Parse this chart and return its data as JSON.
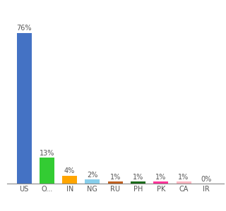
{
  "categories": [
    "US",
    "O...",
    "IN",
    "NG",
    "RU",
    "PH",
    "PK",
    "CA",
    "IR"
  ],
  "values": [
    76,
    13,
    4,
    2,
    1,
    1,
    1,
    1,
    0
  ],
  "labels": [
    "76%",
    "13%",
    "4%",
    "2%",
    "1%",
    "1%",
    "1%",
    "1%",
    "0%"
  ],
  "colors": [
    "#4472C4",
    "#33CC33",
    "#FFA500",
    "#87CEEB",
    "#C06020",
    "#1A6B1A",
    "#FF3399",
    "#FFB6C1",
    "#FF69B4"
  ],
  "ylim": [
    0,
    84
  ],
  "bg_color": "#ffffff",
  "bar_width": 0.65,
  "label_fontsize": 7,
  "tick_fontsize": 7
}
